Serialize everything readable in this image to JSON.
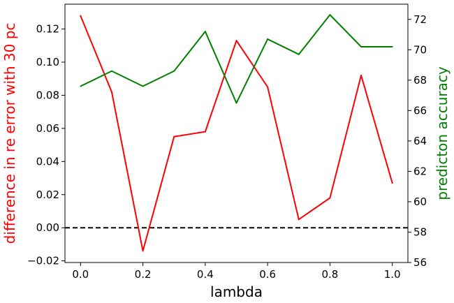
{
  "chart_data": {
    "type": "line",
    "xlabel": "lambda",
    "ylabel_left": "difference in re error with 30 pc",
    "ylabel_right": "predicton accuracy",
    "x": [
      0.0,
      0.1,
      0.2,
      0.3,
      0.4,
      0.5,
      0.6,
      0.7,
      0.8,
      0.9,
      1.0
    ],
    "xlim": [
      -0.05,
      1.05
    ],
    "ylim_left": [
      -0.021,
      0.135
    ],
    "ylim_right": [
      56,
      73
    ],
    "xticks": [
      "0.0",
      "0.2",
      "0.4",
      "0.6",
      "0.8",
      "1.0"
    ],
    "yticks_left": [
      "−0.02",
      "0.00",
      "0.02",
      "0.04",
      "0.06",
      "0.08",
      "0.10",
      "0.12"
    ],
    "yticks_right": [
      "56",
      "58",
      "60",
      "62",
      "64",
      "66",
      "68",
      "70",
      "72"
    ],
    "series": [
      {
        "axis": "left",
        "color": "#ff0000",
        "values": [
          0.128,
          0.082,
          -0.014,
          0.055,
          0.058,
          0.113,
          0.085,
          0.005,
          0.018,
          0.092,
          0.027
        ]
      },
      {
        "axis": "right",
        "color": "#008000",
        "values": [
          67.6,
          68.6,
          67.6,
          68.6,
          71.2,
          66.5,
          70.7,
          69.7,
          72.3,
          70.2,
          70.2
        ]
      }
    ],
    "reference_line": {
      "axis": "left",
      "y": 0.0,
      "style": "dashed",
      "color": "#000000"
    },
    "grid": false
  }
}
